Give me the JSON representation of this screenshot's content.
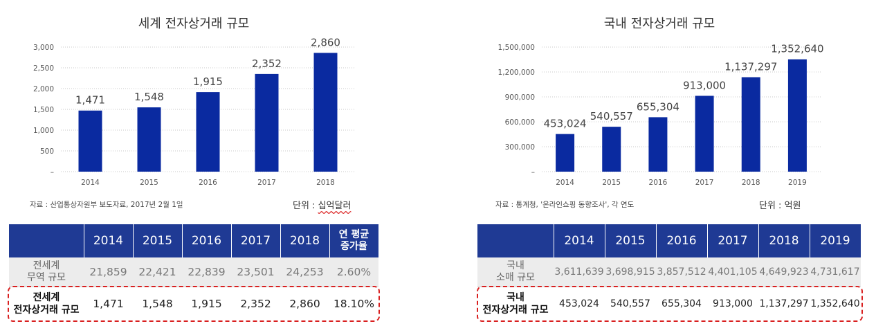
{
  "colors": {
    "bar": "#0a2aa0",
    "header": "#1f3a94",
    "highlight": "#d92020"
  },
  "chart_data": [
    {
      "type": "bar",
      "title": "세계 전자상거래 규모",
      "categories": [
        "2014",
        "2015",
        "2016",
        "2017",
        "2018"
      ],
      "values": [
        1471,
        1548,
        1915,
        2352,
        2860
      ],
      "data_labels": [
        "1,471",
        "1,548",
        "1,915",
        "2,352",
        "2,860"
      ],
      "ylim": [
        0,
        3000
      ],
      "yticks": [
        0,
        500,
        1000,
        1500,
        2000,
        2500,
        3000
      ],
      "ytick_labels": [
        "–",
        "500",
        "1,000",
        "1,500",
        "2,000",
        "2,500",
        "3,000"
      ],
      "xlabel": "",
      "ylabel": "",
      "grid": true
    },
    {
      "type": "bar",
      "title": "국내 전자상거래 규모",
      "categories": [
        "2014",
        "2015",
        "2016",
        "2017",
        "2018",
        "2019"
      ],
      "values": [
        453024,
        540557,
        655304,
        913000,
        1137297,
        1352640
      ],
      "data_labels": [
        "453,024",
        "540,557",
        "655,304",
        "913,000",
        "1,137,297",
        "1,352,640"
      ],
      "ylim": [
        0,
        1500000
      ],
      "yticks": [
        0,
        300000,
        600000,
        900000,
        1200000,
        1500000
      ],
      "ytick_labels": [
        "–",
        "300,000",
        "600,000",
        "900,000",
        "1,200,000",
        "1,500,000"
      ],
      "xlabel": "",
      "ylabel": "",
      "grid": true
    }
  ],
  "world": {
    "source": "자료 : 산업통상자원부 보도자료, 2017년 2월 1일",
    "unit_label": "단위 : ",
    "unit_value": "십억달러",
    "table": {
      "headers": [
        "2014",
        "2015",
        "2016",
        "2017",
        "2018"
      ],
      "growth_header": [
        "연 평균",
        "증가율"
      ],
      "row_trade": {
        "label": [
          "전세계",
          "무역 규모"
        ],
        "values": [
          "21,859",
          "22,421",
          "22,839",
          "23,501",
          "24,253",
          "2.60%"
        ]
      },
      "row_ec": {
        "label": [
          "전세계",
          "전자상거래 규모"
        ],
        "values": [
          "1,471",
          "1,548",
          "1,915",
          "2,352",
          "2,860",
          "18.10%"
        ]
      }
    }
  },
  "domestic": {
    "source": "자료 : 통계청, '온라인쇼핑 동향조사', 각 연도",
    "unit_label": "단위 : ",
    "unit_value": "억원",
    "table": {
      "headers": [
        "2014",
        "2015",
        "2016",
        "2017",
        "2018",
        "2019"
      ],
      "row_trade": {
        "label": [
          "국내",
          "소매 규모"
        ],
        "values": [
          "3,611,639",
          "3,698,915",
          "3,857,512",
          "4,401,105",
          "4,649,923",
          "4,731,617"
        ]
      },
      "row_ec": {
        "label": [
          "국내",
          "전자상거래 규모"
        ],
        "values": [
          "453,024",
          "540,557",
          "655,304",
          "913,000",
          "1,137,297",
          "1,352,640"
        ]
      }
    }
  }
}
